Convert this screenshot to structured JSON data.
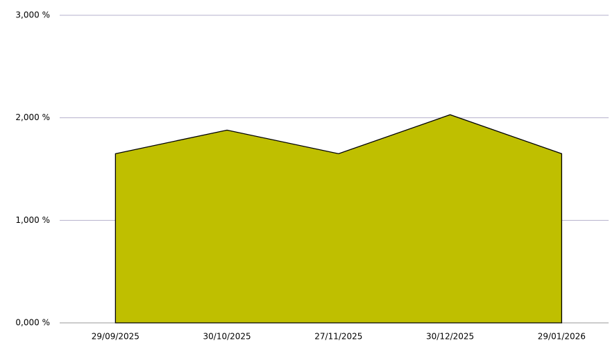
{
  "chart_data": {
    "type": "area",
    "categories": [
      "29/09/2025",
      "30/10/2025",
      "27/11/2025",
      "30/12/2025",
      "29/01/2026"
    ],
    "values": [
      1.65,
      1.88,
      1.65,
      2.03,
      1.65
    ],
    "color": "#bfbf00",
    "ylim": [
      0,
      3
    ],
    "yticks": [
      {
        "value": 0,
        "label": "0,000 %"
      },
      {
        "value": 1,
        "label": "1,000 %"
      },
      {
        "value": 2,
        "label": "2,000 %"
      },
      {
        "value": 3,
        "label": "3,000 %"
      }
    ],
    "grid": true
  }
}
